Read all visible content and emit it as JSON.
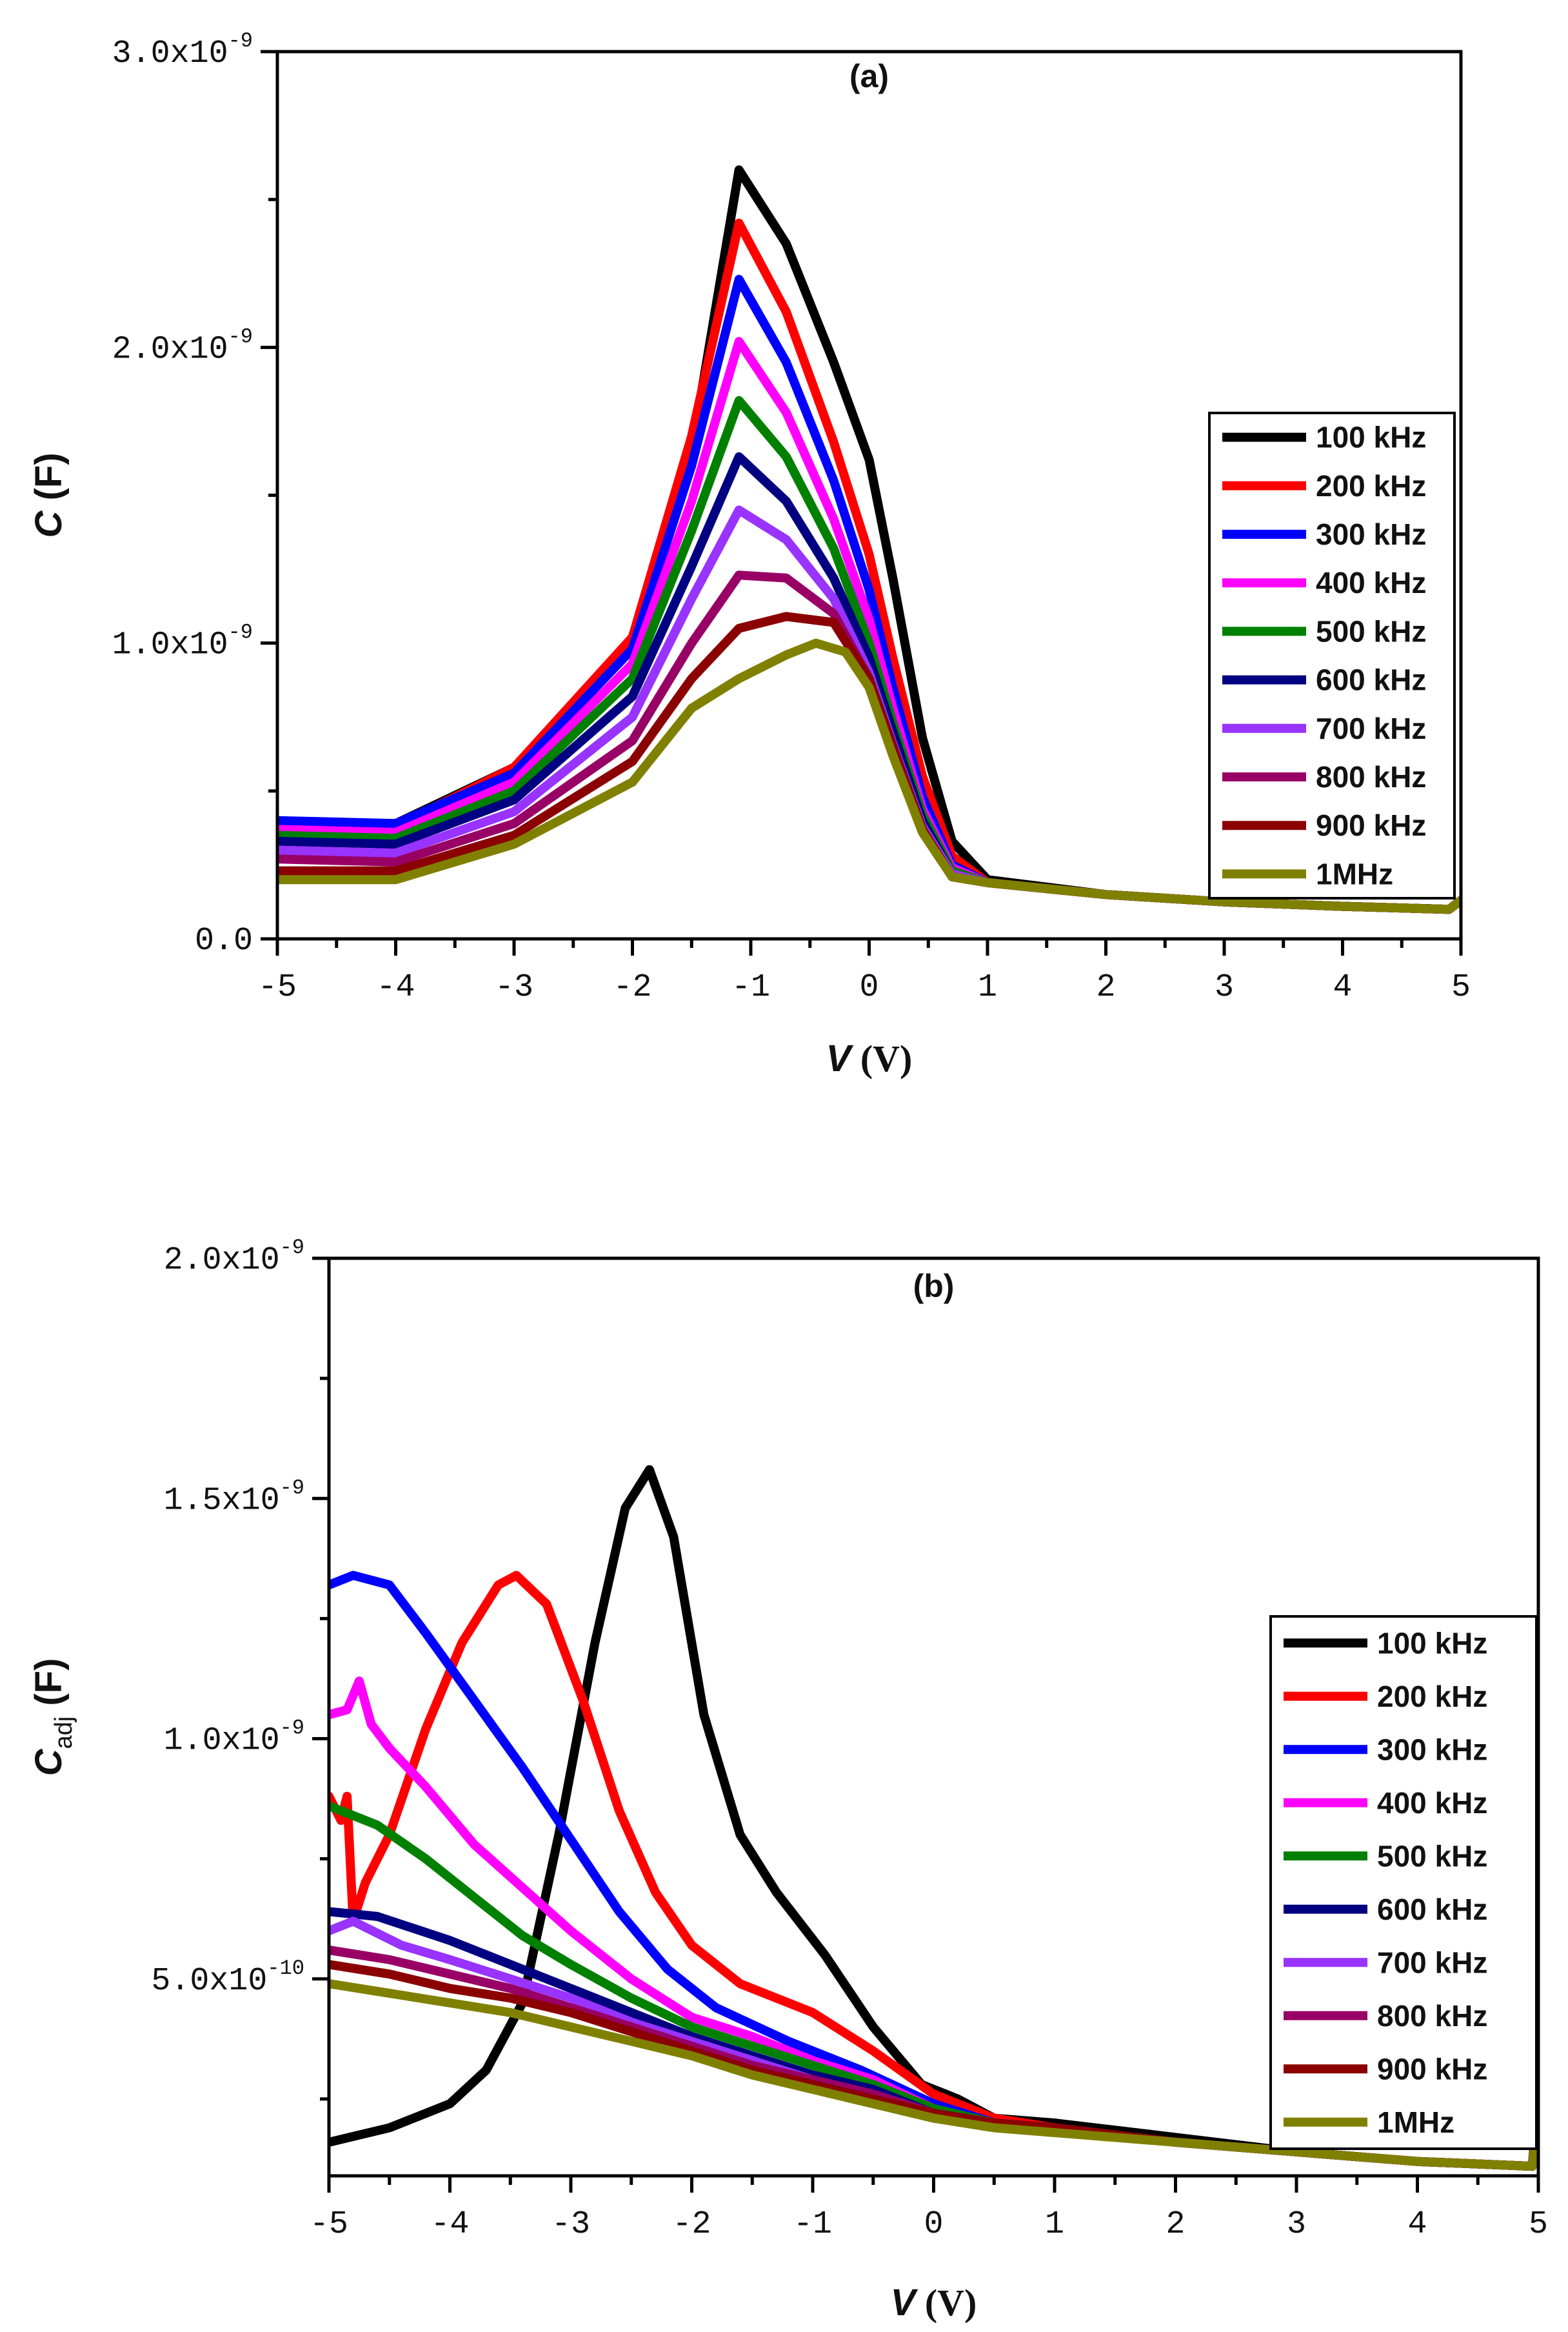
{
  "chart_data": [
    {
      "type": "line",
      "panel_label": "(a)",
      "xlabel": {
        "symbol": "V",
        "unit": " (V)"
      },
      "ylabel": {
        "symbol": "C",
        "sub": "",
        "unit": " (F)"
      },
      "xlim": [
        -5,
        5
      ],
      "ylim": [
        0,
        3e-09
      ],
      "x_ticks": [
        "-5",
        "-4",
        "-3",
        "-2",
        "-1",
        "0",
        "1",
        "2",
        "3",
        "4",
        "5"
      ],
      "y_ticks": [
        {
          "value": 0,
          "mantissa": "0.0",
          "exp": ""
        },
        {
          "value": 1e-09,
          "mantissa": "1.0x10",
          "exp": "-9"
        },
        {
          "value": 2e-09,
          "mantissa": "2.0x10",
          "exp": "-9"
        },
        {
          "value": 3e-09,
          "mantissa": "3.0x10",
          "exp": "-9"
        }
      ],
      "legend_position": "right",
      "series": [
        {
          "name": "100 kHz",
          "color": "#000000",
          "x": [
            -5,
            -4,
            -3,
            -2,
            -1.5,
            -1.1,
            -0.7,
            -0.3,
            0,
            0.2,
            0.45,
            0.7,
            1,
            2,
            3,
            4,
            4.9,
            5
          ],
          "values": [
            3.9e-10,
            3.9e-10,
            5.8e-10,
            1e-09,
            1.65e-09,
            2.6e-09,
            2.35e-09,
            1.95e-09,
            1.62e-09,
            1.22e-09,
            6.8e-10,
            3.3e-10,
            2e-10,
            1.5e-10,
            1.25e-10,
            1.1e-10,
            1e-10,
            1.3e-10
          ]
        },
        {
          "name": "200 kHz",
          "color": "#ff0000",
          "x": [
            -5,
            -4,
            -3,
            -2,
            -1.5,
            -1.1,
            -0.7,
            -0.3,
            0,
            0.2,
            0.45,
            0.7,
            1,
            2,
            3,
            4,
            4.9,
            5
          ],
          "values": [
            3.8e-10,
            3.8e-10,
            5.8e-10,
            1.02e-09,
            1.7e-09,
            2.42e-09,
            2.12e-09,
            1.68e-09,
            1.3e-09,
            9.5e-10,
            5.5e-10,
            2.8e-10,
            1.9e-10,
            1.5e-10,
            1.25e-10,
            1.1e-10,
            1e-10,
            1.3e-10
          ]
        },
        {
          "name": "300 kHz",
          "color": "#0000ff",
          "x": [
            -5,
            -4,
            -3,
            -2,
            -1.5,
            -1.1,
            -0.7,
            -0.3,
            0,
            0.2,
            0.45,
            0.7,
            1,
            2,
            3,
            4,
            4.9,
            5
          ],
          "values": [
            4e-10,
            3.9e-10,
            5.6e-10,
            9.8e-10,
            1.6e-09,
            2.23e-09,
            1.95e-09,
            1.55e-09,
            1.18e-09,
            8.5e-10,
            4.8e-10,
            2.5e-10,
            1.9e-10,
            1.5e-10,
            1.25e-10,
            1.1e-10,
            1e-10,
            1.3e-10
          ]
        },
        {
          "name": "400 kHz",
          "color": "#ff00ff",
          "x": [
            -5,
            -4,
            -3,
            -2,
            -1.5,
            -1.1,
            -0.7,
            -0.3,
            0,
            0.2,
            0.45,
            0.7,
            1,
            2,
            3,
            4,
            4.9,
            5
          ],
          "values": [
            3.7e-10,
            3.6e-10,
            5.3e-10,
            9.3e-10,
            1.48e-09,
            2.02e-09,
            1.78e-09,
            1.42e-09,
            1.08e-09,
            7.8e-10,
            4.4e-10,
            2.4e-10,
            1.9e-10,
            1.5e-10,
            1.25e-10,
            1.1e-10,
            1e-10,
            1.3e-10
          ]
        },
        {
          "name": "500 kHz",
          "color": "#008000",
          "x": [
            -5,
            -4,
            -3,
            -2,
            -1.5,
            -1.1,
            -0.7,
            -0.3,
            0,
            0.2,
            0.45,
            0.7,
            1,
            2,
            3,
            4,
            4.9,
            5
          ],
          "values": [
            3.5e-10,
            3.4e-10,
            5e-10,
            8.8e-10,
            1.38e-09,
            1.82e-09,
            1.63e-09,
            1.32e-09,
            1e-09,
            7.3e-10,
            4.2e-10,
            2.3e-10,
            1.9e-10,
            1.5e-10,
            1.25e-10,
            1.1e-10,
            1e-10,
            1.3e-10
          ]
        },
        {
          "name": "600 kHz",
          "color": "#000080",
          "x": [
            -5,
            -4,
            -3,
            -2,
            -1.5,
            -1.1,
            -0.7,
            -0.3,
            0,
            0.2,
            0.45,
            0.7,
            1,
            2,
            3,
            4,
            4.9,
            5
          ],
          "values": [
            3.3e-10,
            3.2e-10,
            4.7e-10,
            8.2e-10,
            1.26e-09,
            1.63e-09,
            1.48e-09,
            1.22e-09,
            9.5e-10,
            7e-10,
            4e-10,
            2.2e-10,
            1.9e-10,
            1.5e-10,
            1.25e-10,
            1.1e-10,
            1e-10,
            1.3e-10
          ]
        },
        {
          "name": "700 kHz",
          "color": "#9933ff",
          "x": [
            -5,
            -4,
            -3,
            -2,
            -1.5,
            -1.1,
            -0.7,
            -0.3,
            0,
            0.2,
            0.45,
            0.7,
            1,
            2,
            3,
            4,
            4.9,
            5
          ],
          "values": [
            3e-10,
            2.9e-10,
            4.3e-10,
            7.5e-10,
            1.15e-09,
            1.45e-09,
            1.35e-09,
            1.15e-09,
            9e-10,
            6.6e-10,
            3.8e-10,
            2.2e-10,
            1.9e-10,
            1.5e-10,
            1.25e-10,
            1.1e-10,
            1e-10,
            1.3e-10
          ]
        },
        {
          "name": "800 kHz",
          "color": "#990066",
          "x": [
            -5,
            -4,
            -3,
            -2,
            -1.5,
            -1.1,
            -0.7,
            -0.3,
            0,
            0.2,
            0.45,
            0.7,
            1,
            2,
            3,
            4,
            4.9,
            5
          ],
          "values": [
            2.7e-10,
            2.6e-10,
            3.9e-10,
            6.7e-10,
            1e-09,
            1.23e-09,
            1.22e-09,
            1.1e-09,
            8.8e-10,
            6.5e-10,
            3.7e-10,
            2.1e-10,
            1.9e-10,
            1.5e-10,
            1.25e-10,
            1.1e-10,
            1e-10,
            1.3e-10
          ]
        },
        {
          "name": "900 kHz",
          "color": "#8b0000",
          "x": [
            -5,
            -4,
            -3,
            -2,
            -1.5,
            -1.1,
            -0.7,
            -0.3,
            0,
            0.2,
            0.45,
            0.7,
            1,
            2,
            3,
            4,
            4.9,
            5
          ],
          "values": [
            2.3e-10,
            2.3e-10,
            3.5e-10,
            6e-10,
            8.8e-10,
            1.05e-09,
            1.09e-09,
            1.07e-09,
            8.8e-10,
            6.5e-10,
            3.7e-10,
            2.1e-10,
            1.9e-10,
            1.5e-10,
            1.25e-10,
            1.1e-10,
            1e-10,
            1.3e-10
          ]
        },
        {
          "name": "1MHz",
          "color": "#808000",
          "x": [
            -5,
            -4,
            -3,
            -2,
            -1.5,
            -1.1,
            -0.7,
            -0.45,
            -0.2,
            0,
            0.2,
            0.45,
            0.7,
            1,
            2,
            3,
            4,
            4.9,
            5
          ],
          "values": [
            2e-10,
            2e-10,
            3.2e-10,
            5.3e-10,
            7.8e-10,
            8.8e-10,
            9.6e-10,
            1e-09,
            9.7e-10,
            8.5e-10,
            6.2e-10,
            3.6e-10,
            2.1e-10,
            1.9e-10,
            1.5e-10,
            1.25e-10,
            1.1e-10,
            1e-10,
            1.3e-10
          ]
        }
      ]
    },
    {
      "type": "line",
      "panel_label": "(b)",
      "xlabel": {
        "symbol": "V",
        "unit": " (V)"
      },
      "ylabel": {
        "symbol": "C",
        "sub": "adj",
        "unit": " (F)"
      },
      "xlim": [
        -5,
        5
      ],
      "ylim": [
        9e-11,
        2e-09
      ],
      "x_ticks": [
        "-5",
        "-4",
        "-3",
        "-2",
        "-1",
        "0",
        "1",
        "2",
        "3",
        "4",
        "5"
      ],
      "y_ticks": [
        {
          "value": 5e-10,
          "mantissa": "5.0x10",
          "exp": "-10"
        },
        {
          "value": 1e-09,
          "mantissa": "1.0x10",
          "exp": "-9"
        },
        {
          "value": 1.5e-09,
          "mantissa": "1.5x10",
          "exp": "-9"
        },
        {
          "value": 2e-09,
          "mantissa": "2.0x10",
          "exp": "-9"
        }
      ],
      "legend_position": "right",
      "series": [
        {
          "name": "100 kHz",
          "color": "#000000",
          "x": [
            -5,
            -4.5,
            -4,
            -3.7,
            -3.4,
            -3.1,
            -2.8,
            -2.55,
            -2.35,
            -2.15,
            -1.9,
            -1.6,
            -1.3,
            -0.9,
            -0.5,
            -0.1,
            0.2,
            0.5,
            1,
            2,
            3,
            4,
            4.95,
            5
          ],
          "values": [
            1.6e-10,
            1.9e-10,
            2.4e-10,
            3.1e-10,
            4.5e-10,
            8e-10,
            1.2e-09,
            1.48e-09,
            1.56e-09,
            1.42e-09,
            1.05e-09,
            8e-10,
            6.8e-10,
            5.5e-10,
            4e-10,
            2.8e-10,
            2.5e-10,
            2.1e-10,
            2e-10,
            1.7e-10,
            1.4e-10,
            1.2e-10,
            1.1e-10,
            2.6e-10
          ]
        },
        {
          "name": "200 kHz",
          "color": "#ff0000",
          "x": [
            -5,
            -4.9,
            -4.85,
            -4.8,
            -4.7,
            -4.5,
            -4.2,
            -3.9,
            -3.6,
            -3.45,
            -3.2,
            -2.9,
            -2.6,
            -2.3,
            -2.0,
            -1.6,
            -1.0,
            -0.5,
            0,
            0.5,
            1,
            2,
            3,
            4,
            4.95,
            5
          ],
          "values": [
            8.8e-10,
            8.3e-10,
            8.8e-10,
            6.2e-10,
            7e-10,
            8e-10,
            1.02e-09,
            1.2e-09,
            1.32e-09,
            1.34e-09,
            1.28e-09,
            1.08e-09,
            8.5e-10,
            6.8e-10,
            5.7e-10,
            4.9e-10,
            4.3e-10,
            3.5e-10,
            2.6e-10,
            2.1e-10,
            1.9e-10,
            1.6e-10,
            1.4e-10,
            1.2e-10,
            1.1e-10,
            2.5e-10
          ]
        },
        {
          "name": "300 kHz",
          "color": "#0000ff",
          "x": [
            -5,
            -4.8,
            -4.5,
            -4.2,
            -3.8,
            -3.4,
            -3.0,
            -2.6,
            -2.2,
            -1.8,
            -1.2,
            -0.6,
            0,
            0.5,
            1,
            2,
            3,
            4,
            4.95,
            5
          ],
          "values": [
            1.32e-09,
            1.34e-09,
            1.32e-09,
            1.22e-09,
            1.08e-09,
            9.4e-10,
            7.9e-10,
            6.4e-10,
            5.2e-10,
            4.4e-10,
            3.7e-10,
            3.1e-10,
            2.4e-10,
            2e-10,
            1.9e-10,
            1.6e-10,
            1.4e-10,
            1.2e-10,
            1.1e-10,
            2.4e-10
          ]
        },
        {
          "name": "400 kHz",
          "color": "#ff00ff",
          "x": [
            -5,
            -4.85,
            -4.75,
            -4.65,
            -4.5,
            -4.2,
            -3.8,
            -3.4,
            -3.0,
            -2.5,
            -2.0,
            -1.5,
            -1.0,
            -0.5,
            0,
            0.5,
            1,
            2,
            3,
            4,
            4.95,
            5
          ],
          "values": [
            1.05e-09,
            1.06e-09,
            1.12e-09,
            1.03e-09,
            9.8e-10,
            9e-10,
            7.8e-10,
            6.9e-10,
            6e-10,
            5e-10,
            4.2e-10,
            3.8e-10,
            3.3e-10,
            2.9e-10,
            2.3e-10,
            2e-10,
            1.9e-10,
            1.6e-10,
            1.4e-10,
            1.2e-10,
            1.1e-10,
            2.4e-10
          ]
        },
        {
          "name": "500 kHz",
          "color": "#008000",
          "x": [
            -5,
            -4.6,
            -4.2,
            -3.8,
            -3.4,
            -3.0,
            -2.5,
            -2.0,
            -1.5,
            -1.0,
            -0.5,
            0,
            0.5,
            1,
            2,
            3,
            4,
            4.95,
            5
          ],
          "values": [
            8.6e-10,
            8.2e-10,
            7.5e-10,
            6.7e-10,
            5.9e-10,
            5.3e-10,
            4.6e-10,
            4e-10,
            3.6e-10,
            3.2e-10,
            2.8e-10,
            2.3e-10,
            2e-10,
            1.9e-10,
            1.6e-10,
            1.4e-10,
            1.2e-10,
            1.1e-10,
            2.4e-10
          ]
        },
        {
          "name": "600 kHz",
          "color": "#000080",
          "x": [
            -5,
            -4.6,
            -4.0,
            -3.5,
            -3.0,
            -2.5,
            -2.0,
            -1.5,
            -1.0,
            -0.5,
            0,
            0.5,
            1,
            2,
            3,
            4,
            4.95,
            5
          ],
          "values": [
            6.4e-10,
            6.3e-10,
            5.8e-10,
            5.3e-10,
            4.8e-10,
            4.3e-10,
            3.8e-10,
            3.4e-10,
            3e-10,
            2.7e-10,
            2.2e-10,
            2e-10,
            1.9e-10,
            1.6e-10,
            1.4e-10,
            1.2e-10,
            1.1e-10,
            2.4e-10
          ]
        },
        {
          "name": "700 kHz",
          "color": "#9933ff",
          "x": [
            -5,
            -4.8,
            -4.4,
            -4.0,
            -3.5,
            -3.0,
            -2.5,
            -2.0,
            -1.5,
            -1.0,
            -0.5,
            0,
            0.5,
            1,
            2,
            3,
            4,
            4.95,
            5
          ],
          "values": [
            6e-10,
            6.2e-10,
            5.7e-10,
            5.4e-10,
            5e-10,
            4.6e-10,
            4.1e-10,
            3.7e-10,
            3.3e-10,
            2.9e-10,
            2.6e-10,
            2.2e-10,
            2e-10,
            1.9e-10,
            1.6e-10,
            1.4e-10,
            1.2e-10,
            1.1e-10,
            2.4e-10
          ]
        },
        {
          "name": "800 kHz",
          "color": "#990066",
          "x": [
            -5,
            -4.5,
            -4.0,
            -3.5,
            -3.0,
            -2.5,
            -2.0,
            -1.5,
            -1.0,
            -0.5,
            0,
            0.5,
            1,
            2,
            3,
            4,
            4.95,
            5
          ],
          "values": [
            5.6e-10,
            5.4e-10,
            5.1e-10,
            4.8e-10,
            4.4e-10,
            4e-10,
            3.6e-10,
            3.2e-10,
            2.9e-10,
            2.6e-10,
            2.2e-10,
            2e-10,
            1.9e-10,
            1.6e-10,
            1.4e-10,
            1.2e-10,
            1.1e-10,
            2.4e-10
          ]
        },
        {
          "name": "900 kHz",
          "color": "#8b0000",
          "x": [
            -5,
            -4.5,
            -4.0,
            -3.5,
            -3.0,
            -2.5,
            -2.0,
            -1.5,
            -1.0,
            -0.5,
            0,
            0.5,
            1,
            2,
            3,
            4,
            4.95,
            5
          ],
          "values": [
            5.3e-10,
            5.1e-10,
            4.8e-10,
            4.6e-10,
            4.3e-10,
            3.9e-10,
            3.5e-10,
            3.1e-10,
            2.8e-10,
            2.5e-10,
            2.2e-10,
            2e-10,
            1.9e-10,
            1.6e-10,
            1.4e-10,
            1.2e-10,
            1.1e-10,
            2.4e-10
          ]
        },
        {
          "name": "1MHz",
          "color": "#808000",
          "x": [
            -5,
            -4.5,
            -4.0,
            -3.5,
            -3.0,
            -2.5,
            -2.0,
            -1.5,
            -1.0,
            -0.5,
            0,
            0.5,
            1,
            2,
            3,
            4,
            4.95,
            5
          ],
          "values": [
            4.9e-10,
            4.7e-10,
            4.5e-10,
            4.3e-10,
            4e-10,
            3.7e-10,
            3.4e-10,
            3e-10,
            2.7e-10,
            2.4e-10,
            2.1e-10,
            1.9e-10,
            1.8e-10,
            1.6e-10,
            1.4e-10,
            1.2e-10,
            1.1e-10,
            2.2e-10
          ]
        }
      ]
    }
  ]
}
